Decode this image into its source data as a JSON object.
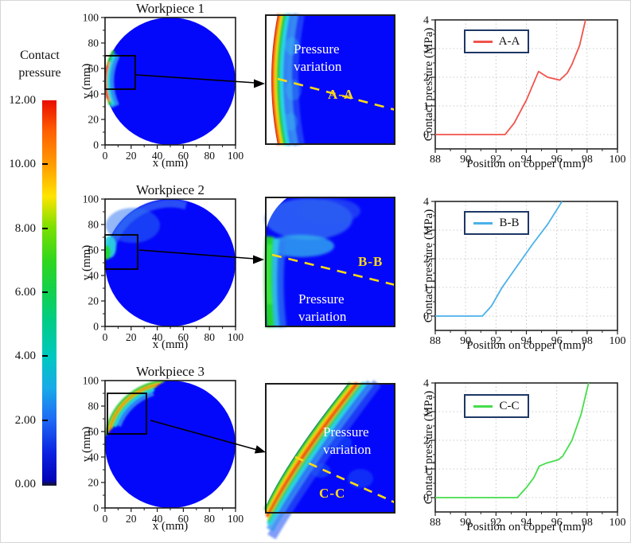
{
  "figure": {
    "background": "#ffffff",
    "contour_fill": "#0408fa"
  },
  "colorbar": {
    "title_line1": "Contact",
    "title_line2": "pressure",
    "tick_labels": [
      "12.00",
      "10.00",
      "8.00",
      "6.00",
      "4.00",
      "2.00",
      "0.00"
    ],
    "gradient": [
      "#e80d00 0%",
      "#ff5f00 8%",
      "#ff9e00 17%",
      "#ffe400 25%",
      "#7ce000 33%",
      "#2ed61f 42%",
      "#12d04e 50%",
      "#00cc8a 58%",
      "#00c8c0 67%",
      "#18aae8 75%",
      "#1e6cf5 83%",
      "#0b22e0 92%",
      "#0404b8 99%",
      "#10104a 100%"
    ]
  },
  "workpieces": [
    {
      "title": "Workpiece 1",
      "xlabel": "x (mm)",
      "ylabel": "y (mm)",
      "xticks": [
        0,
        20,
        40,
        60,
        80,
        100
      ],
      "yticks": [
        0,
        20,
        40,
        60,
        80,
        100
      ]
    },
    {
      "title": "Workpiece 2",
      "xlabel": "x (mm)",
      "ylabel": "y (mm)",
      "xticks": [
        0,
        20,
        40,
        60,
        80,
        100
      ],
      "yticks": [
        0,
        20,
        40,
        60,
        80,
        100
      ]
    },
    {
      "title": "Workpiece 3",
      "xlabel": "x (mm)",
      "ylabel": "y (mm)",
      "xticks": [
        0,
        20,
        40,
        60,
        80,
        100
      ],
      "yticks": [
        0,
        20,
        40,
        60,
        80,
        100
      ]
    }
  ],
  "insets": [
    {
      "annotation_line1": "Pressure",
      "annotation_line2": "variation",
      "section_label": "A-A",
      "dash_color": "#ffdb12",
      "annotation_color": "#ffffff"
    },
    {
      "annotation_line1": "Pressure",
      "annotation_line2": "variation",
      "section_label": "B-B",
      "dash_color": "#ffdb12",
      "annotation_color": "#ffffff"
    },
    {
      "annotation_line1": "Pressure",
      "annotation_line2": "variation",
      "section_label": "C-C",
      "dash_color": "#ffdb12",
      "annotation_color": "#ffffff"
    }
  ],
  "chart_data": [
    {
      "type": "line",
      "xlabel": "Position on copper (mm)",
      "ylabel": "Contact pressure (MPa)",
      "xlim": [
        88,
        100
      ],
      "ylim": [
        -0.5,
        4
      ],
      "xticks": [
        88,
        90,
        92,
        94,
        96,
        98,
        100
      ],
      "yticks": [
        0,
        1,
        2,
        3,
        4
      ],
      "grid": true,
      "legend": {
        "label": "A-A",
        "position": "upper-left"
      },
      "color": "#f0534c",
      "points": [
        [
          88,
          0
        ],
        [
          92.6,
          0
        ],
        [
          93.2,
          0.4
        ],
        [
          94.0,
          1.2
        ],
        [
          94.8,
          2.2
        ],
        [
          95.4,
          2.0
        ],
        [
          96.2,
          1.9
        ],
        [
          96.7,
          2.15
        ],
        [
          97.0,
          2.45
        ],
        [
          97.5,
          3.1
        ],
        [
          97.9,
          4.0
        ]
      ]
    },
    {
      "type": "line",
      "xlabel": "Position on copper (mm)",
      "ylabel": "Contact pressure (MPa)",
      "xlim": [
        88,
        100
      ],
      "ylim": [
        -0.5,
        4
      ],
      "xticks": [
        88,
        90,
        92,
        94,
        96,
        98,
        100
      ],
      "yticks": [
        0,
        1,
        2,
        3,
        4
      ],
      "grid": true,
      "legend": {
        "label": "B-B",
        "position": "upper-left"
      },
      "color": "#4bb1ea",
      "points": [
        [
          88,
          0
        ],
        [
          91.1,
          0
        ],
        [
          91.7,
          0.35
        ],
        [
          92.4,
          1.0
        ],
        [
          93.2,
          1.6
        ],
        [
          94.4,
          2.5
        ],
        [
          95.4,
          3.2
        ],
        [
          96.35,
          4.0
        ]
      ]
    },
    {
      "type": "line",
      "xlabel": "Position on copper (mm)",
      "ylabel": "Contact pressure (MPa)",
      "xlim": [
        88,
        100
      ],
      "ylim": [
        -0.5,
        4
      ],
      "xticks": [
        88,
        90,
        92,
        94,
        96,
        98,
        100
      ],
      "yticks": [
        0,
        1,
        2,
        3,
        4
      ],
      "grid": true,
      "legend": {
        "label": "C-C",
        "position": "upper-left"
      },
      "color": "#46dd4c",
      "points": [
        [
          88,
          0
        ],
        [
          93.4,
          0
        ],
        [
          94.0,
          0.35
        ],
        [
          94.5,
          0.7
        ],
        [
          94.85,
          1.1
        ],
        [
          95.3,
          1.2
        ],
        [
          96.1,
          1.32
        ],
        [
          96.4,
          1.45
        ],
        [
          97.0,
          2.0
        ],
        [
          97.6,
          2.9
        ],
        [
          98.1,
          4.0
        ]
      ]
    }
  ]
}
